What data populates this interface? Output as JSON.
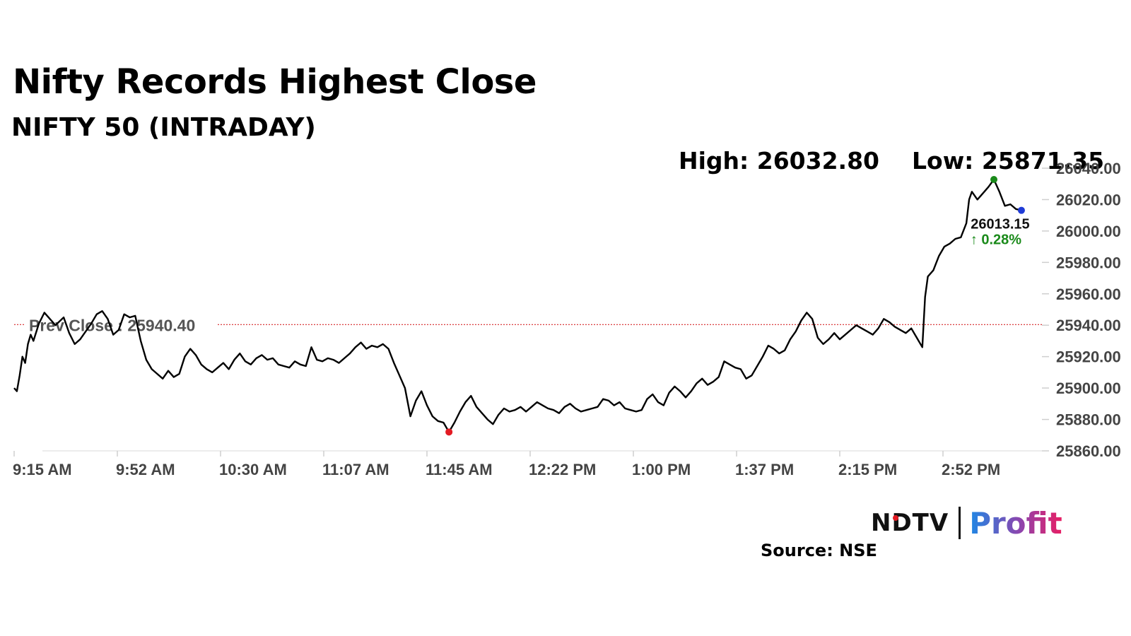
{
  "header": {
    "title": "Nifty Records Highest Close",
    "subtitle": "NIFTY 50 (INTRADAY)",
    "high_label": "High: 26032.80",
    "low_label": "Low: 25871.35"
  },
  "chart_data": {
    "type": "line",
    "title": "Nifty Records Highest Close",
    "subtitle": "NIFTY 50 (INTRADAY)",
    "x_tick_labels": [
      "9:15 AM",
      "9:52 AM",
      "10:30 AM",
      "11:07 AM",
      "11:45 AM",
      "12:22 PM",
      "1:00 PM",
      "1:37 PM",
      "2:15 PM",
      "2:52 PM"
    ],
    "y_tick_labels": [
      "25860.00",
      "25880.00",
      "25900.00",
      "25920.00",
      "25940.00",
      "25960.00",
      "25980.00",
      "26000.00",
      "26020.00",
      "26040.00"
    ],
    "ylim": [
      25860,
      26040
    ],
    "x_range_minutes": [
      0,
      360
    ],
    "prev_close_label": "Prev Close : 25940.40",
    "prev_close": 25940.4,
    "high": 26032.8,
    "low": 25871.35,
    "last_value_label": "26013.15",
    "change_label": "↑ 0.28%",
    "series": [
      {
        "points": [
          [
            0,
            25900
          ],
          [
            1,
            25898
          ],
          [
            2,
            25908
          ],
          [
            3,
            25920
          ],
          [
            4,
            25916
          ],
          [
            5,
            25928
          ],
          [
            6,
            25934
          ],
          [
            7,
            25930
          ],
          [
            9,
            25941
          ],
          [
            11,
            25948
          ],
          [
            13,
            25944
          ],
          [
            15,
            25940
          ],
          [
            18,
            25945
          ],
          [
            20,
            25935
          ],
          [
            22,
            25928
          ],
          [
            24,
            25931
          ],
          [
            26,
            25936
          ],
          [
            28,
            25941
          ],
          [
            30,
            25947
          ],
          [
            32,
            25949
          ],
          [
            34,
            25944
          ],
          [
            36,
            25934
          ],
          [
            38,
            25937
          ],
          [
            40,
            25947
          ],
          [
            42,
            25945
          ],
          [
            44,
            25946
          ],
          [
            46,
            25930
          ],
          [
            48,
            25918
          ],
          [
            50,
            25912
          ],
          [
            52,
            25909
          ],
          [
            54,
            25906
          ],
          [
            56,
            25911
          ],
          [
            58,
            25907
          ],
          [
            60,
            25909
          ],
          [
            62,
            25920
          ],
          [
            64,
            25925
          ],
          [
            66,
            25921
          ],
          [
            68,
            25915
          ],
          [
            70,
            25912
          ],
          [
            72,
            25910
          ],
          [
            74,
            25913
          ],
          [
            76,
            25916
          ],
          [
            78,
            25912
          ],
          [
            80,
            25918
          ],
          [
            82,
            25922
          ],
          [
            84,
            25917
          ],
          [
            86,
            25915
          ],
          [
            88,
            25919
          ],
          [
            90,
            25921
          ],
          [
            92,
            25918
          ],
          [
            94,
            25919
          ],
          [
            96,
            25915
          ],
          [
            98,
            25914
          ],
          [
            100,
            25913
          ],
          [
            102,
            25917
          ],
          [
            104,
            25915
          ],
          [
            106,
            25914
          ],
          [
            108,
            25926
          ],
          [
            110,
            25918
          ],
          [
            112,
            25917
          ],
          [
            114,
            25919
          ],
          [
            116,
            25918
          ],
          [
            118,
            25916
          ],
          [
            120,
            25919
          ],
          [
            122,
            25922
          ],
          [
            124,
            25926
          ],
          [
            126,
            25929
          ],
          [
            128,
            25925
          ],
          [
            130,
            25927
          ],
          [
            132,
            25926
          ],
          [
            134,
            25928
          ],
          [
            136,
            25925
          ],
          [
            138,
            25916
          ],
          [
            140,
            25908
          ],
          [
            142,
            25900
          ],
          [
            144,
            25882
          ],
          [
            146,
            25892
          ],
          [
            148,
            25898
          ],
          [
            150,
            25889
          ],
          [
            152,
            25882
          ],
          [
            154,
            25879
          ],
          [
            156,
            25878
          ],
          [
            158,
            25872
          ],
          [
            160,
            25878
          ],
          [
            162,
            25885
          ],
          [
            164,
            25891
          ],
          [
            166,
            25895
          ],
          [
            168,
            25888
          ],
          [
            170,
            25884
          ],
          [
            172,
            25880
          ],
          [
            174,
            25877
          ],
          [
            176,
            25883
          ],
          [
            178,
            25887
          ],
          [
            180,
            25885
          ],
          [
            182,
            25886
          ],
          [
            184,
            25888
          ],
          [
            186,
            25885
          ],
          [
            188,
            25888
          ],
          [
            190,
            25891
          ],
          [
            192,
            25889
          ],
          [
            194,
            25887
          ],
          [
            196,
            25886
          ],
          [
            198,
            25884
          ],
          [
            200,
            25888
          ],
          [
            202,
            25890
          ],
          [
            204,
            25887
          ],
          [
            206,
            25885
          ],
          [
            208,
            25886
          ],
          [
            210,
            25887
          ],
          [
            212,
            25888
          ],
          [
            214,
            25893
          ],
          [
            216,
            25892
          ],
          [
            218,
            25889
          ],
          [
            220,
            25891
          ],
          [
            222,
            25887
          ],
          [
            224,
            25886
          ],
          [
            226,
            25885
          ],
          [
            228,
            25886
          ],
          [
            230,
            25893
          ],
          [
            232,
            25896
          ],
          [
            234,
            25891
          ],
          [
            236,
            25889
          ],
          [
            238,
            25897
          ],
          [
            240,
            25901
          ],
          [
            242,
            25898
          ],
          [
            244,
            25894
          ],
          [
            246,
            25898
          ],
          [
            248,
            25903
          ],
          [
            250,
            25906
          ],
          [
            252,
            25902
          ],
          [
            254,
            25904
          ],
          [
            256,
            25907
          ],
          [
            258,
            25917
          ],
          [
            260,
            25915
          ],
          [
            262,
            25913
          ],
          [
            264,
            25912
          ],
          [
            266,
            25906
          ],
          [
            268,
            25908
          ],
          [
            270,
            25914
          ],
          [
            272,
            25920
          ],
          [
            274,
            25927
          ],
          [
            276,
            25925
          ],
          [
            278,
            25922
          ],
          [
            280,
            25924
          ],
          [
            282,
            25931
          ],
          [
            284,
            25936
          ],
          [
            286,
            25943
          ],
          [
            288,
            25948
          ],
          [
            290,
            25944
          ],
          [
            292,
            25932
          ],
          [
            294,
            25928
          ],
          [
            296,
            25931
          ],
          [
            298,
            25935
          ],
          [
            300,
            25931
          ],
          [
            302,
            25934
          ],
          [
            304,
            25937
          ],
          [
            306,
            25940
          ],
          [
            308,
            25938
          ],
          [
            310,
            25936
          ],
          [
            312,
            25934
          ],
          [
            314,
            25938
          ],
          [
            316,
            25944
          ],
          [
            318,
            25942
          ],
          [
            320,
            25939
          ],
          [
            322,
            25937
          ],
          [
            324,
            25935
          ],
          [
            326,
            25938
          ],
          [
            328,
            25932
          ],
          [
            330,
            25926
          ],
          [
            331,
            25958
          ],
          [
            332,
            25971
          ],
          [
            334,
            25975
          ],
          [
            336,
            25984
          ],
          [
            338,
            25990
          ],
          [
            340,
            25992
          ],
          [
            342,
            25995
          ],
          [
            344,
            25996
          ],
          [
            346,
            26005
          ],
          [
            347,
            26020
          ],
          [
            348,
            26025
          ],
          [
            350,
            26020
          ],
          [
            352,
            26024
          ],
          [
            354,
            26028
          ],
          [
            356,
            26032.8
          ],
          [
            358,
            26025
          ],
          [
            360,
            26016
          ],
          [
            362,
            26017
          ],
          [
            364,
            26014
          ],
          [
            366,
            26013.15
          ]
        ]
      }
    ]
  },
  "footer": {
    "source": "Source: NSE",
    "logo_left": "NDTV",
    "logo_right": "Profit"
  },
  "colors": {
    "line": "#000000",
    "prev_close_line": "#d62728",
    "high_marker": "#1a8a1a",
    "low_marker": "#e31b23",
    "last_marker": "#1f3bd6",
    "change_text": "#1a8a1a"
  }
}
